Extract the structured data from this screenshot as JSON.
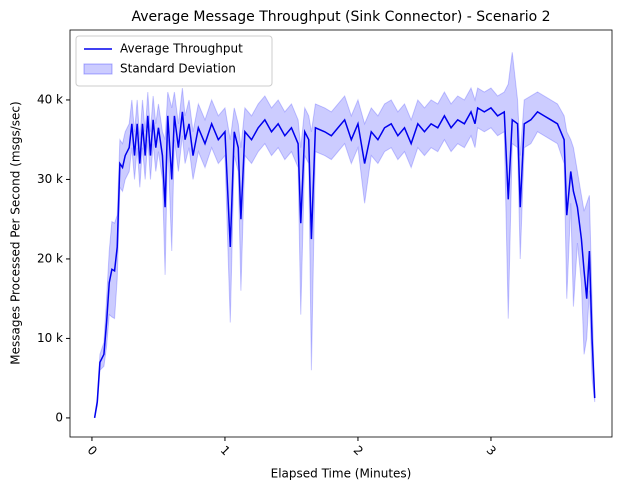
{
  "chart_data": {
    "type": "line",
    "title": "Average Message Throughput (Sink Connector) - Scenario 2",
    "x_label": "Elapsed Time (Minutes)",
    "y_label": "Messages Processed Per Second (msgs/sec)",
    "xlim": [
      -0.165,
      3.91
    ],
    "ylim": [
      -2400,
      48800
    ],
    "xticks": [
      0,
      1,
      2,
      3
    ],
    "yticks": [
      0,
      {
        "value": 10000,
        "label": "10 k"
      },
      {
        "value": 20000,
        "label": "20 k"
      },
      {
        "value": 30000,
        "label": "30 k"
      },
      {
        "value": 40000,
        "label": "40 k"
      }
    ],
    "legend": "upper left",
    "x": [
      0.02,
      0.04,
      0.06,
      0.09,
      0.11,
      0.13,
      0.15,
      0.17,
      0.19,
      0.21,
      0.23,
      0.25,
      0.28,
      0.3,
      0.32,
      0.34,
      0.36,
      0.38,
      0.4,
      0.42,
      0.44,
      0.46,
      0.48,
      0.5,
      0.53,
      0.55,
      0.57,
      0.6,
      0.62,
      0.65,
      0.68,
      0.7,
      0.73,
      0.76,
      0.8,
      0.85,
      0.9,
      0.95,
      1.0,
      1.04,
      1.07,
      1.1,
      1.12,
      1.15,
      1.2,
      1.25,
      1.3,
      1.35,
      1.4,
      1.45,
      1.5,
      1.55,
      1.57,
      1.6,
      1.63,
      1.65,
      1.68,
      1.75,
      1.8,
      1.85,
      1.9,
      1.95,
      2.0,
      2.05,
      2.1,
      2.15,
      2.2,
      2.25,
      2.3,
      2.35,
      2.4,
      2.45,
      2.5,
      2.55,
      2.6,
      2.65,
      2.7,
      2.75,
      2.8,
      2.85,
      2.88,
      2.9,
      2.95,
      3.0,
      3.05,
      3.1,
      3.13,
      3.16,
      3.2,
      3.22,
      3.25,
      3.3,
      3.35,
      3.4,
      3.45,
      3.5,
      3.55,
      3.57,
      3.6,
      3.62,
      3.65,
      3.68,
      3.7,
      3.72,
      3.74,
      3.76,
      3.78
    ],
    "series": [
      {
        "name": "Average Throughput",
        "color": "#0000ee",
        "values": [
          0,
          2000,
          7000,
          8000,
          12000,
          17000,
          18700,
          18500,
          21500,
          32000,
          31500,
          33000,
          34000,
          37000,
          33000,
          37000,
          32000,
          37000,
          33000,
          38000,
          33000,
          37500,
          34000,
          36500,
          33000,
          26500,
          38000,
          30000,
          38000,
          34000,
          38500,
          35000,
          37000,
          33000,
          36500,
          34500,
          37000,
          35000,
          36000,
          21500,
          36000,
          34000,
          25000,
          36000,
          35000,
          36500,
          37500,
          36000,
          37000,
          35500,
          36500,
          34500,
          24500,
          36000,
          35000,
          22500,
          36500,
          36000,
          35500,
          36500,
          37500,
          35000,
          37000,
          32000,
          36000,
          35000,
          36500,
          37000,
          35500,
          36500,
          34500,
          37000,
          36000,
          37000,
          36500,
          38000,
          36500,
          37500,
          37000,
          38500,
          37000,
          39000,
          38500,
          39000,
          38000,
          38500,
          27500,
          37500,
          37000,
          26500,
          37000,
          37500,
          38500,
          38000,
          37500,
          37000,
          35000,
          25500,
          31000,
          28500,
          26500,
          22500,
          18500,
          15000,
          21000,
          10000,
          2500
        ]
      }
    ],
    "band": {
      "name": "Standard Deviation",
      "color": "#0000ff",
      "lower": [
        0,
        1500,
        6000,
        6500,
        9000,
        13000,
        12700,
        12500,
        17500,
        29000,
        28500,
        30000,
        31000,
        34000,
        30000,
        34000,
        29000,
        34000,
        30000,
        35000,
        30000,
        34500,
        31000,
        33500,
        30000,
        18000,
        35000,
        21000,
        35000,
        31000,
        35500,
        32000,
        34000,
        30000,
        33500,
        31500,
        34000,
        32000,
        33000,
        12000,
        33000,
        31000,
        16000,
        33000,
        32000,
        33500,
        34500,
        33000,
        34000,
        32500,
        33500,
        31500,
        13000,
        33000,
        32000,
        6000,
        33500,
        33000,
        32500,
        33500,
        34500,
        32000,
        34000,
        27000,
        33000,
        32000,
        33500,
        34000,
        32500,
        33500,
        31500,
        34000,
        33000,
        34000,
        33500,
        35000,
        33500,
        34500,
        34000,
        35500,
        34000,
        36500,
        36000,
        36500,
        35500,
        36000,
        12500,
        34500,
        34000,
        20000,
        34000,
        34500,
        36000,
        35500,
        35000,
        34500,
        32000,
        15000,
        27000,
        14000,
        22000,
        17000,
        8000,
        10000,
        16000,
        5000,
        2000
      ],
      "upper": [
        0,
        2500,
        8000,
        9500,
        15000,
        21000,
        24700,
        24500,
        25500,
        35000,
        34500,
        36000,
        37000,
        40000,
        36000,
        40000,
        35000,
        40000,
        36000,
        41000,
        36000,
        40500,
        37000,
        39500,
        36000,
        35000,
        41000,
        39000,
        41000,
        37000,
        41500,
        38000,
        40000,
        36000,
        39500,
        37500,
        40000,
        38000,
        39000,
        35000,
        39000,
        37000,
        34000,
        39000,
        38000,
        39500,
        40500,
        39000,
        40000,
        38500,
        39500,
        37500,
        34000,
        39000,
        38000,
        36000,
        39500,
        39000,
        38500,
        39500,
        40500,
        38000,
        40000,
        37000,
        39000,
        38000,
        39500,
        40000,
        38500,
        39500,
        37500,
        40000,
        39000,
        40000,
        39500,
        41000,
        39500,
        40500,
        40000,
        41500,
        40000,
        41500,
        41000,
        41500,
        40500,
        41000,
        42000,
        46000,
        40000,
        33000,
        40000,
        40500,
        41000,
        40500,
        40000,
        39500,
        38000,
        36000,
        35000,
        34000,
        31000,
        28000,
        26000,
        27000,
        28000,
        15000,
        3000
      ]
    }
  }
}
